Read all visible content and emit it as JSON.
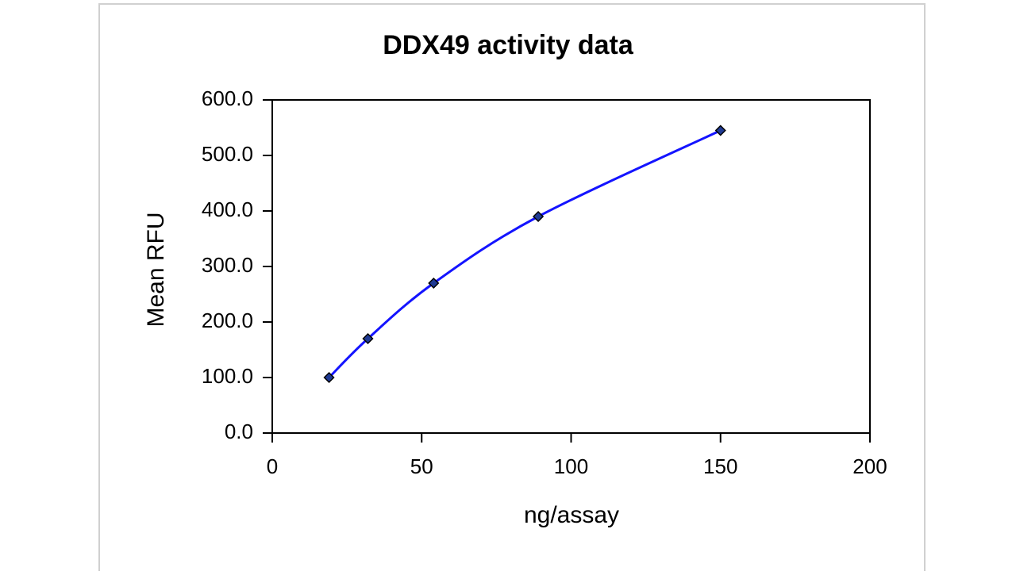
{
  "chart_data": {
    "type": "scatter",
    "title": "DDX49 activity data",
    "x_label": "ng/assay",
    "y_label": "Mean RFU",
    "x": [
      19,
      32,
      54,
      89,
      150
    ],
    "values": [
      100,
      170,
      270,
      390,
      545
    ],
    "color": "#1414ff",
    "marker_color": "#1f3a93",
    "smooth": true,
    "xlim": [
      0,
      200
    ],
    "xticks": [
      0,
      50,
      100,
      150,
      200
    ],
    "ylim": [
      0,
      600
    ],
    "yticks": [
      {
        "value": 0,
        "label": "0.0"
      },
      {
        "value": 100,
        "label": "100.0"
      },
      {
        "value": 200,
        "label": "200.0"
      },
      {
        "value": 300,
        "label": "300.0"
      },
      {
        "value": 400,
        "label": "400.0"
      },
      {
        "value": 500,
        "label": "500.0"
      },
      {
        "value": 600,
        "label": "600.0"
      }
    ],
    "grid": false
  }
}
